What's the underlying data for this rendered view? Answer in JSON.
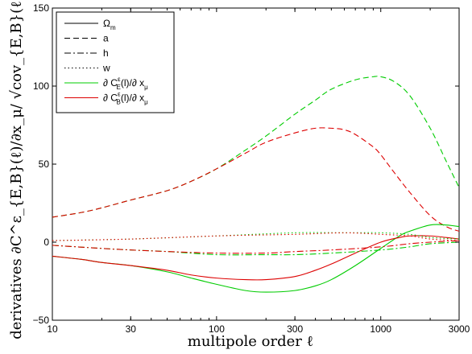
{
  "chart_data": {
    "type": "line",
    "xscale": "log",
    "xlim": [
      10,
      3000
    ],
    "ylim": [
      -50,
      150
    ],
    "grid": false,
    "legend_position": "top-left",
    "xlabel": "multipole order ℓ",
    "ylabel": "derivatives ∂C^ε_{E,B}(ℓ)/∂x_μ/ √cov_{E,B}(ℓ)",
    "x_ticks": [
      10,
      30,
      100,
      300,
      1000,
      3000
    ],
    "x_tick_labels": [
      "10",
      "30",
      "100",
      "300",
      "1000",
      "3000"
    ],
    "y_ticks": [
      -50,
      0,
      50,
      100,
      150
    ],
    "y_tick_labels": [
      "−50",
      "0",
      "50",
      "100",
      "150"
    ],
    "legend": [
      {
        "label": "Ω",
        "sub": "m",
        "color": "#000000",
        "dash": "solid"
      },
      {
        "label": "a",
        "sub": "",
        "color": "#000000",
        "dash": "dashed"
      },
      {
        "label": "h",
        "sub": "",
        "color": "#000000",
        "dash": "dashdot"
      },
      {
        "label": "w",
        "sub": "",
        "color": "#000000",
        "dash": "dotted"
      },
      {
        "label": "∂ C",
        "sup": "ε",
        "sub": "E",
        "tail": "(l)/∂ x",
        "tail_sub": "μ",
        "color": "#00cc00",
        "dash": "solid"
      },
      {
        "label": "∂ C",
        "sup": "ε",
        "sub": "B",
        "tail": "(l)/∂ x",
        "tail_sub": "μ",
        "color": "#dd0000",
        "dash": "solid"
      }
    ],
    "series": [
      {
        "param": "a",
        "spectrum": "E",
        "color": "#00cc00",
        "dash": "dashed",
        "x": [
          10,
          15,
          20,
          30,
          50,
          70,
          100,
          150,
          200,
          300,
          400,
          500,
          700,
          900,
          1000,
          1200,
          1500,
          2000,
          2500,
          3000
        ],
        "y": [
          16,
          19,
          22,
          27,
          33,
          39,
          47,
          59,
          68,
          82,
          91,
          98,
          104,
          106,
          106,
          103,
          94,
          73,
          52,
          35
        ]
      },
      {
        "param": "a",
        "spectrum": "B",
        "color": "#dd0000",
        "dash": "dashed",
        "x": [
          10,
          15,
          20,
          30,
          50,
          70,
          100,
          150,
          200,
          300,
          400,
          500,
          600,
          700,
          900,
          1000,
          1200,
          1500,
          2000,
          2500,
          3000
        ],
        "y": [
          16,
          19,
          22,
          27,
          33,
          39,
          47,
          57,
          64,
          70,
          73,
          73,
          72,
          69,
          61,
          56,
          45,
          32,
          17,
          10,
          7
        ]
      },
      {
        "param": "Omega_m",
        "spectrum": "E",
        "color": "#00cc00",
        "dash": "solid",
        "x": [
          10,
          15,
          20,
          30,
          50,
          70,
          100,
          150,
          200,
          300,
          400,
          500,
          700,
          1000,
          1300,
          1500,
          2000,
          2500,
          3000
        ],
        "y": [
          -9,
          -11,
          -13,
          -15,
          -19,
          -23,
          -27,
          -31,
          -32,
          -31,
          -28,
          -24,
          -15,
          -4,
          4,
          7,
          11,
          11,
          10
        ]
      },
      {
        "param": "Omega_m",
        "spectrum": "B",
        "color": "#dd0000",
        "dash": "solid",
        "x": [
          10,
          15,
          20,
          30,
          50,
          70,
          100,
          150,
          200,
          300,
          400,
          500,
          700,
          1000,
          1300,
          1500,
          2000,
          2500,
          3000
        ],
        "y": [
          -9,
          -11,
          -13,
          -15,
          -18,
          -21,
          -23,
          -24,
          -24,
          -22,
          -18,
          -14,
          -7,
          0,
          3,
          4,
          4,
          3,
          2
        ]
      },
      {
        "param": "h",
        "spectrum": "E",
        "color": "#00cc00",
        "dash": "dashdot",
        "x": [
          10,
          20,
          30,
          50,
          100,
          200,
          300,
          500,
          1000,
          1500,
          2000,
          3000
        ],
        "y": [
          -2,
          -4,
          -5,
          -6,
          -8,
          -8,
          -8,
          -7,
          -5,
          -3,
          -1,
          0
        ]
      },
      {
        "param": "h",
        "spectrum": "B",
        "color": "#dd0000",
        "dash": "dashdot",
        "x": [
          10,
          20,
          30,
          50,
          100,
          200,
          300,
          500,
          1000,
          1500,
          2000,
          3000
        ],
        "y": [
          -2,
          -4,
          -5,
          -6,
          -7,
          -7,
          -6,
          -5,
          -3,
          -1,
          0,
          1
        ]
      },
      {
        "param": "w",
        "spectrum": "E",
        "color": "#00cc00",
        "dash": "dotted",
        "x": [
          10,
          30,
          100,
          300,
          600,
          1000,
          1500,
          2000,
          3000
        ],
        "y": [
          1,
          2,
          4,
          6,
          6,
          6,
          5,
          3,
          2
        ]
      },
      {
        "param": "w",
        "spectrum": "B",
        "color": "#dd0000",
        "dash": "dotted",
        "x": [
          10,
          30,
          100,
          300,
          600,
          1000,
          1500,
          2000,
          3000
        ],
        "y": [
          1,
          2,
          4,
          5,
          6,
          5,
          4,
          2,
          1
        ]
      }
    ]
  }
}
